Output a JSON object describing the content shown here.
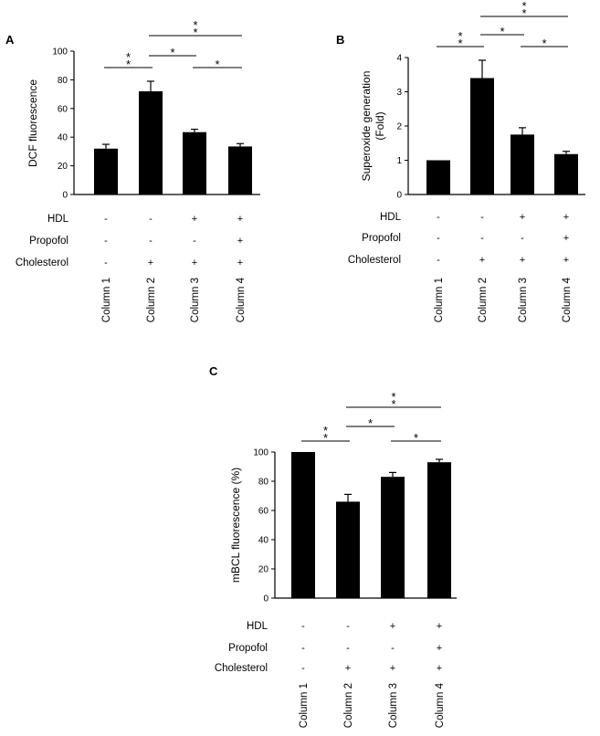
{
  "figure": {
    "condition_labels": [
      "HDL",
      "Propofol",
      "Cholesterol"
    ],
    "condition_signs": {
      "HDL": [
        "-",
        "-",
        "+",
        "+"
      ],
      "Propofol": [
        "-",
        "-",
        "-",
        "+"
      ],
      "Cholesterol": [
        "-",
        "+",
        "+",
        "+"
      ]
    },
    "significance_mark": "*"
  },
  "chart_data": [
    {
      "panel": "A",
      "type": "bar",
      "categories": [
        "Column 1",
        "Column 2",
        "Column 3",
        "Column 4"
      ],
      "values": [
        32,
        72,
        43.5,
        33.5
      ],
      "errors": [
        3,
        7,
        2,
        2
      ],
      "ylabel": "DCF fluorescence",
      "ylim": [
        0,
        100
      ],
      "yticks": [
        0,
        20,
        40,
        60,
        80,
        100
      ],
      "significance": [
        {
          "from": 0,
          "to": 1,
          "stars": 2
        },
        {
          "from": 1,
          "to": 2,
          "stars": 1
        },
        {
          "from": 2,
          "to": 3,
          "stars": 1
        },
        {
          "from": 1,
          "to": 3,
          "stars": 2
        }
      ]
    },
    {
      "panel": "B",
      "type": "bar",
      "categories": [
        "Column 1",
        "Column 2",
        "Column 3",
        "Column 4"
      ],
      "values": [
        1.0,
        3.4,
        1.75,
        1.18
      ],
      "errors": [
        0,
        0.52,
        0.2,
        0.08
      ],
      "ylabel": "Superoxide generation (Fold)",
      "ylabel_lines": [
        "Superoxide generation",
        "(Fold)"
      ],
      "ylim": [
        0,
        4
      ],
      "yticks": [
        0,
        1,
        2,
        3,
        4
      ],
      "significance": [
        {
          "from": 0,
          "to": 1,
          "stars": 2
        },
        {
          "from": 1,
          "to": 2,
          "stars": 1
        },
        {
          "from": 2,
          "to": 3,
          "stars": 1
        },
        {
          "from": 1,
          "to": 3,
          "stars": 2
        }
      ]
    },
    {
      "panel": "C",
      "type": "bar",
      "categories": [
        "Column 1",
        "Column 2",
        "Column 3",
        "Column 4"
      ],
      "values": [
        100,
        66,
        83,
        93
      ],
      "errors": [
        0,
        5,
        3,
        2
      ],
      "ylabel": "mBCL fluorescence (%)",
      "ylim": [
        0,
        100
      ],
      "yticks": [
        0,
        20,
        40,
        60,
        80,
        100
      ],
      "significance": [
        {
          "from": 0,
          "to": 1,
          "stars": 2
        },
        {
          "from": 1,
          "to": 2,
          "stars": 1
        },
        {
          "from": 2,
          "to": 3,
          "stars": 1
        },
        {
          "from": 1,
          "to": 3,
          "stars": 2
        }
      ]
    }
  ]
}
